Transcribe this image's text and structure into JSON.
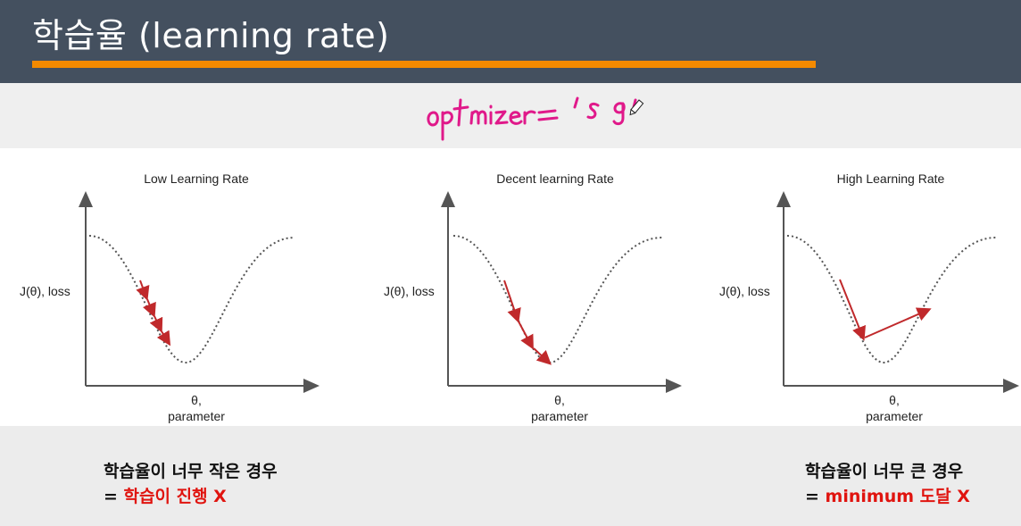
{
  "header": {
    "title": "학습율 (learning rate)",
    "accent_color": "#f48a00",
    "background_color": "#44505f"
  },
  "annotation": {
    "handwritten_text": "optimizer = 'sgd'",
    "ink_color": "#e0198a",
    "cursor_icon": "pen-cursor-icon"
  },
  "charts": [
    {
      "title": "Low Learning Rate",
      "ylabel": "J(θ), loss",
      "xlabel_line1": "θ,",
      "xlabel_line2": "parameter"
    },
    {
      "title": "Decent learning Rate",
      "ylabel": "J(θ), loss",
      "xlabel_line1": "θ,",
      "xlabel_line2": "parameter"
    },
    {
      "title": "High Learning Rate",
      "ylabel": "J(θ), loss",
      "xlabel_line1": "θ,",
      "xlabel_line2": "parameter"
    }
  ],
  "captions": {
    "left_line1": "학습율이 너무 작은 경우",
    "left_prefix": "= ",
    "left_line2": "학습이 진행 X",
    "right_line1": "학습율이 너무 큰 경우",
    "right_prefix": "= ",
    "right_line2": "minimum 도달 X"
  },
  "colors": {
    "arrow": "#c0292b",
    "curve": "#555555",
    "highlight": "#e0140f"
  }
}
